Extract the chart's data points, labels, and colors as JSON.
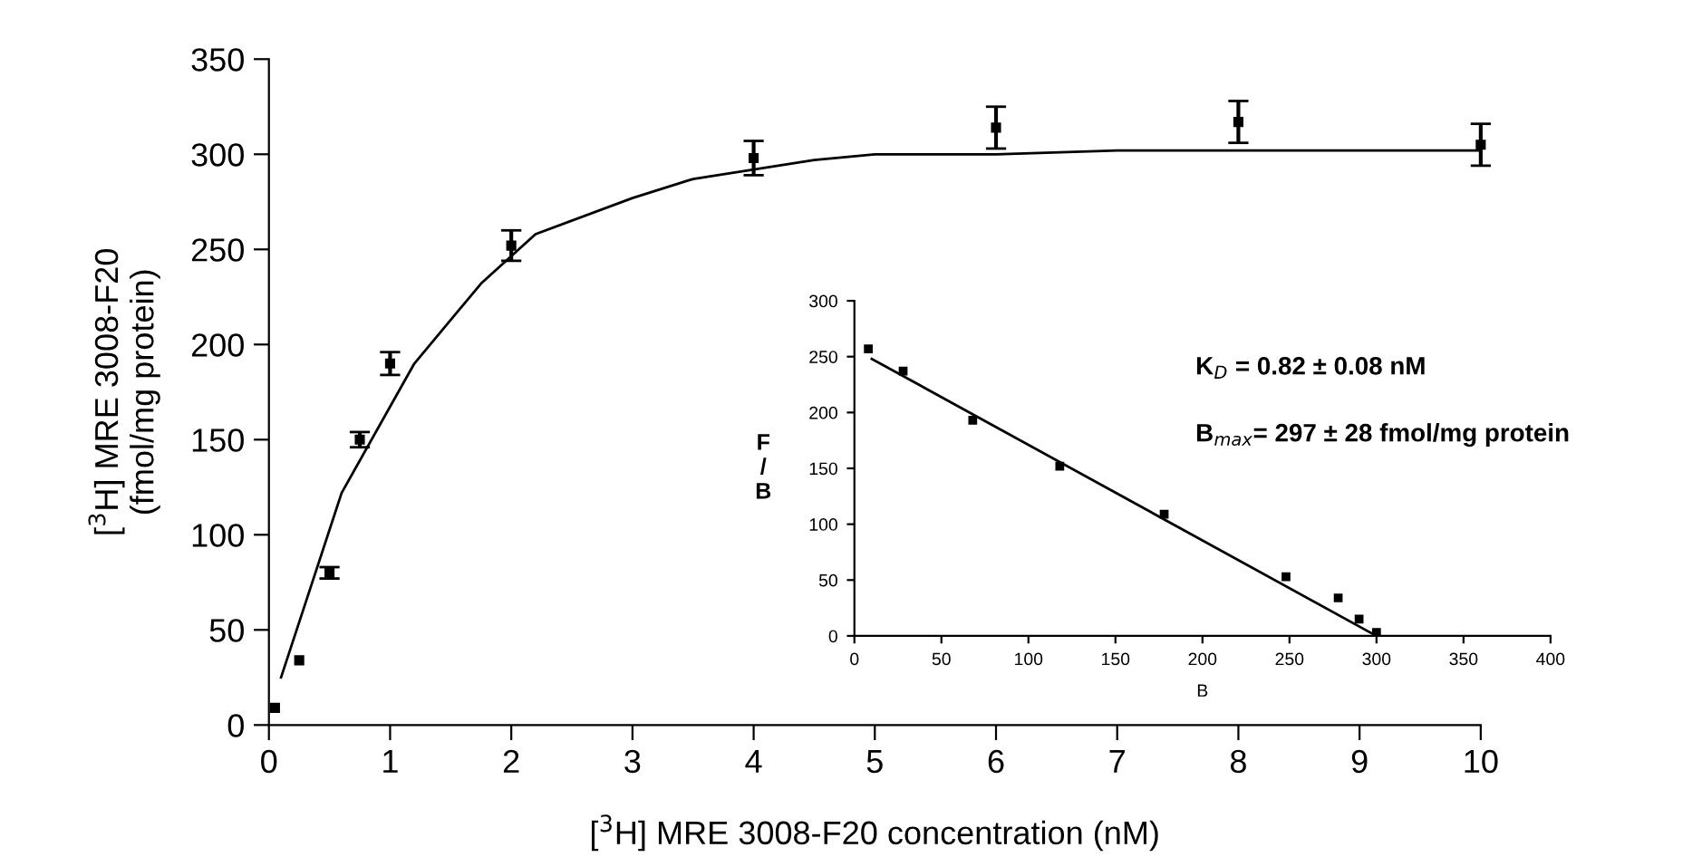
{
  "chart_data": [
    {
      "type": "scatter",
      "xlabel": "[$^{3}$H] MRE 3008-F20 concentration (nM)",
      "ylabel": "[$^{3}$H] MRE 3008-F20\n(fmol/mg protein)",
      "xlim": [
        0,
        10
      ],
      "ylim": [
        0,
        350
      ],
      "xticks": [
        0,
        1,
        2,
        3,
        4,
        5,
        6,
        7,
        8,
        9,
        10
      ],
      "yticks": [
        0,
        50,
        100,
        150,
        200,
        250,
        300,
        350
      ],
      "grid": false,
      "legend": false,
      "series": [
        {
          "color": "#000000",
          "marker": "square",
          "x": [
            0.05,
            0.25,
            0.5,
            0.75,
            1,
            2,
            4,
            6,
            8,
            10
          ],
          "values": [
            9,
            34,
            80,
            150,
            190,
            252,
            298,
            314,
            317,
            305
          ],
          "errors": [
            null,
            null,
            3,
            4,
            6,
            8,
            9,
            11,
            11,
            11
          ]
        },
        {
          "type": "line",
          "color": "#000000",
          "marker": "none",
          "line_style": "solid",
          "x": [
            0.1,
            0.6,
            1.2,
            1.75,
            2.2,
            3,
            3.5,
            4,
            4.5,
            5,
            6,
            7,
            8,
            10
          ],
          "values": [
            25,
            122,
            190,
            232,
            258,
            277,
            287,
            292,
            297,
            300,
            300,
            302,
            302,
            302
          ]
        }
      ]
    },
    {
      "type": "scatter",
      "xlabel": "B",
      "ylabel": "F\n/\nB",
      "xlim": [
        0,
        400
      ],
      "ylim": [
        0,
        300
      ],
      "xticks": [
        0,
        50,
        100,
        150,
        200,
        250,
        300,
        350,
        400
      ],
      "yticks": [
        0,
        50,
        100,
        150,
        200,
        250,
        300
      ],
      "grid": false,
      "legend": false,
      "annotations": [
        "K$_{D}$ = 0.82 ± 0.08 nM",
        "B$_{max}$= 297 ± 28 fmol/mg protein"
      ],
      "series": [
        {
          "color": "#000000",
          "marker": "square",
          "x": [
            8,
            28,
            68,
            118,
            178,
            248,
            278,
            290,
            300
          ],
          "values": [
            257,
            237,
            193,
            152,
            109,
            53,
            34,
            15,
            3
          ]
        },
        {
          "type": "line",
          "color": "#000000",
          "marker": "none",
          "line_style": "solid",
          "x": [
            10,
            300
          ],
          "values": [
            248,
            0
          ]
        }
      ]
    }
  ]
}
